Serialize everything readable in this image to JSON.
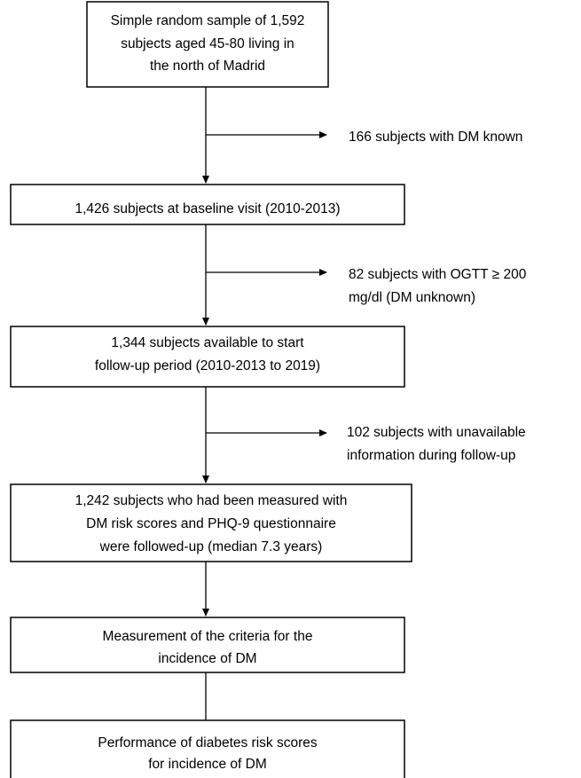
{
  "boxes": [
    {
      "lines": [
        "Simple random sample of 1,592",
        "subjects aged 45-80 living in",
        "the north of Madrid"
      ]
    },
    {
      "lines": [
        "1,426  subjects at baseline visit (2010-2013)"
      ]
    },
    {
      "lines": [
        "1,344  subjects available to start",
        "follow-up period (2010-2013 to 2019)"
      ]
    },
    {
      "lines": [
        "1,242  subjects who had been measured with",
        "DM risk scores and PHQ-9 questionnaire",
        "were followed-up (median 7.3 years)"
      ]
    },
    {
      "lines": [
        "Measurement of the criteria for the",
        "incidence of DM"
      ]
    },
    {
      "lines": [
        "Performance of diabetes risk scores",
        "for incidence of DM"
      ]
    }
  ],
  "exclusions": [
    {
      "lines": [
        "166  subjects with DM known"
      ]
    },
    {
      "lines": [
        "82  subjects with OGTT ≥ 200",
        "mg/dl (DM unknown)"
      ]
    },
    {
      "lines": [
        "102  subjects with unavailable",
        "information during follow-up"
      ]
    }
  ]
}
